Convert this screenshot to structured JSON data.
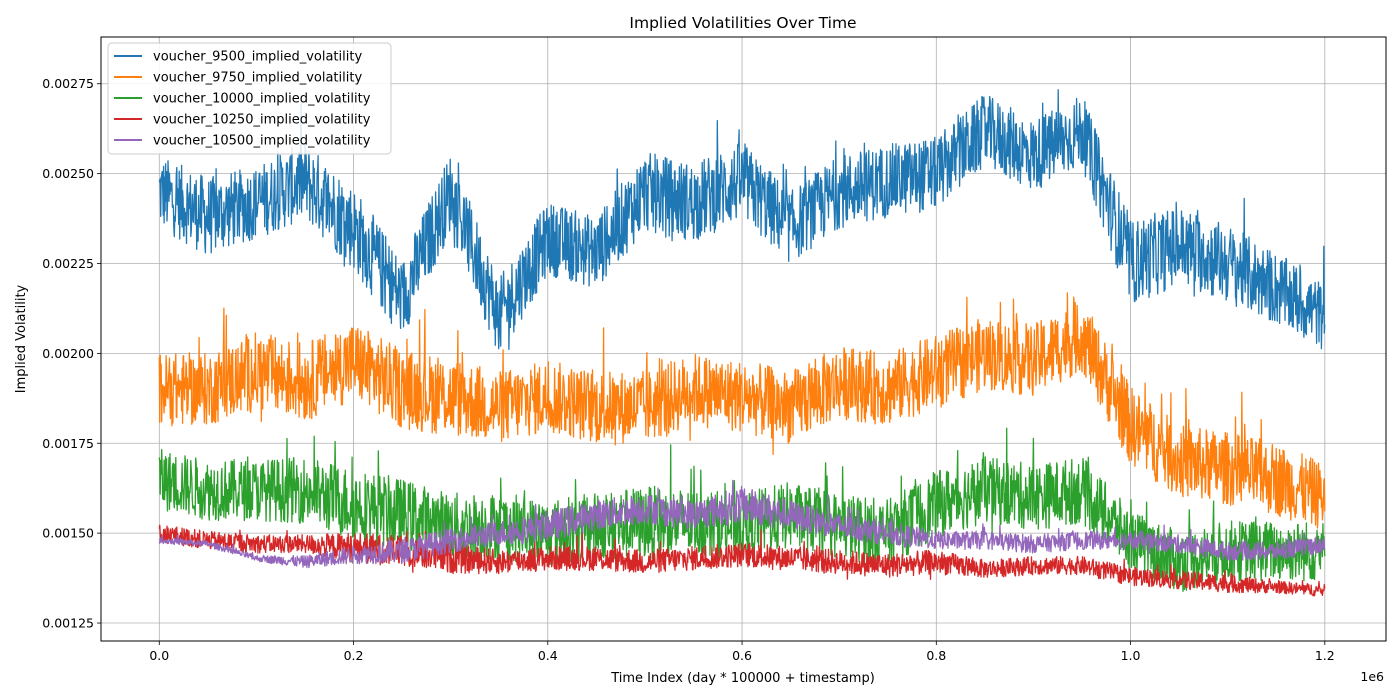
{
  "chart_data": {
    "type": "line",
    "title": "Implied Volatilities Over Time",
    "xlabel": "Time Index (day * 100000 + timestamp)",
    "ylabel": "Implied Volatility",
    "x_offset_label": "1e6",
    "xlim": [
      -0.06,
      1.263
    ],
    "ylim": [
      0.0012,
      0.00288
    ],
    "x_ticks": [
      0.0,
      0.2,
      0.4,
      0.6,
      0.8,
      1.0,
      1.2
    ],
    "x_tick_labels": [
      "0.0",
      "0.2",
      "0.4",
      "0.6",
      "0.8",
      "1.0",
      "1.2"
    ],
    "y_ticks": [
      0.00125,
      0.0015,
      0.00175,
      0.002,
      0.00225,
      0.0025,
      0.00275
    ],
    "y_tick_labels": [
      "0.00125",
      "0.00150",
      "0.00175",
      "0.00200",
      "0.00225",
      "0.00250",
      "0.00275"
    ],
    "grid": true,
    "legend_position": "upper-left",
    "x": [
      0.0,
      0.05,
      0.1,
      0.15,
      0.2,
      0.25,
      0.3,
      0.35,
      0.4,
      0.45,
      0.5,
      0.55,
      0.6,
      0.65,
      0.7,
      0.75,
      0.8,
      0.85,
      0.9,
      0.95,
      1.0,
      1.05,
      1.1,
      1.15,
      1.2
    ],
    "series": [
      {
        "name": "voucher_9500_implied_volatility",
        "color": "#1f77b4",
        "values": [
          0.00245,
          0.00238,
          0.00242,
          0.00248,
          0.00235,
          0.00215,
          0.00245,
          0.0021,
          0.00232,
          0.00228,
          0.00245,
          0.00242,
          0.00248,
          0.00235,
          0.00245,
          0.00248,
          0.0025,
          0.00262,
          0.00255,
          0.00262,
          0.00225,
          0.0023,
          0.00225,
          0.00218,
          0.0021
        ],
        "spread": [
          0.00012,
          0.00013,
          0.00012,
          0.00013,
          0.00014,
          0.00013,
          0.00013,
          0.00013,
          0.00012,
          0.00012,
          0.00013,
          0.00013,
          0.00013,
          0.00012,
          0.00012,
          0.00012,
          0.00012,
          0.00012,
          0.00012,
          0.00012,
          0.00014,
          0.00013,
          0.00013,
          0.00012,
          0.00011
        ]
      },
      {
        "name": "voucher_9750_implied_volatility",
        "color": "#ff7f0e",
        "values": [
          0.0019,
          0.0019,
          0.00195,
          0.00192,
          0.00198,
          0.0019,
          0.00188,
          0.00185,
          0.00188,
          0.00185,
          0.00185,
          0.0019,
          0.00188,
          0.00185,
          0.00192,
          0.0019,
          0.00195,
          0.002,
          0.00198,
          0.00205,
          0.0018,
          0.0017,
          0.00168,
          0.00165,
          0.0016
        ],
        "spread": [
          0.00012,
          0.00012,
          0.00013,
          0.00013,
          0.00013,
          0.00013,
          0.00013,
          0.00012,
          0.00012,
          0.00012,
          0.00012,
          0.00012,
          0.00012,
          0.00012,
          0.00012,
          0.00012,
          0.00012,
          0.00012,
          0.00012,
          0.00012,
          0.00013,
          0.00012,
          0.00012,
          0.00012,
          0.00011
        ]
      },
      {
        "name": "voucher_10000_implied_volatility",
        "color": "#2ca02c",
        "values": [
          0.00165,
          0.00162,
          0.00162,
          0.00162,
          0.00158,
          0.00155,
          0.00152,
          0.00152,
          0.0015,
          0.00152,
          0.00153,
          0.00153,
          0.00152,
          0.00155,
          0.00152,
          0.0015,
          0.00158,
          0.00162,
          0.0016,
          0.00162,
          0.00148,
          0.00142,
          0.00145,
          0.00145,
          0.00145
        ],
        "spread": [
          0.0001,
          0.0001,
          0.0001,
          0.00011,
          0.00012,
          0.00012,
          0.00011,
          0.00011,
          0.00011,
          0.00011,
          0.00012,
          0.00011,
          0.00011,
          0.00011,
          0.00011,
          0.00011,
          0.00011,
          0.00011,
          0.00011,
          0.00011,
          0.0001,
          0.0001,
          0.0001,
          0.0001,
          0.0001
        ]
      },
      {
        "name": "voucher_10250_implied_volatility",
        "color": "#d62728",
        "values": [
          0.0015,
          0.00148,
          0.00147,
          0.00147,
          0.00146,
          0.00145,
          0.00143,
          0.00142,
          0.00143,
          0.00143,
          0.00142,
          0.00143,
          0.00144,
          0.00143,
          0.00142,
          0.00141,
          0.00142,
          0.0014,
          0.00141,
          0.00141,
          0.00138,
          0.00137,
          0.00136,
          0.00135,
          0.00134
        ],
        "spread": [
          3e-05,
          3e-05,
          3e-05,
          3e-05,
          5e-05,
          5e-05,
          5e-05,
          4e-05,
          4e-05,
          4e-05,
          4e-05,
          4e-05,
          4e-05,
          4e-05,
          4e-05,
          4e-05,
          4e-05,
          3e-05,
          3e-05,
          3e-05,
          3e-05,
          3e-05,
          3e-05,
          2e-05,
          2e-05
        ]
      },
      {
        "name": "voucher_10500_implied_volatility",
        "color": "#9467bd",
        "values": [
          0.00148,
          0.00147,
          0.00143,
          0.00142,
          0.00144,
          0.00145,
          0.00148,
          0.0015,
          0.00152,
          0.00155,
          0.00157,
          0.00155,
          0.00158,
          0.00155,
          0.00152,
          0.0015,
          0.00148,
          0.00148,
          0.00147,
          0.00148,
          0.00148,
          0.00147,
          0.00145,
          0.00145,
          0.00147
        ],
        "spread": [
          1e-05,
          1e-05,
          1e-05,
          2e-05,
          3e-05,
          4e-05,
          4e-05,
          4e-05,
          5e-05,
          5e-05,
          5e-05,
          5e-05,
          6e-05,
          5e-05,
          4e-05,
          4e-05,
          3e-05,
          3e-05,
          3e-05,
          3e-05,
          3e-05,
          3e-05,
          3e-05,
          3e-05,
          3e-05
        ]
      }
    ]
  }
}
